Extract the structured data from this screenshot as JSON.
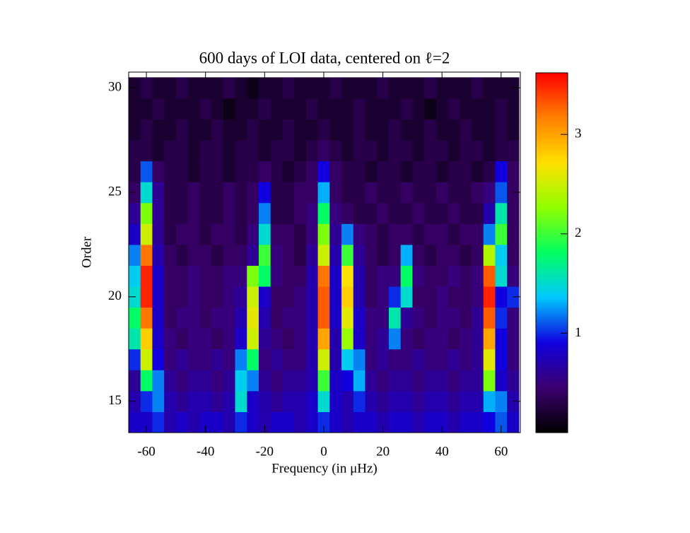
{
  "chart_data": {
    "type": "heatmap",
    "title": "600 days of LOI data, centered on ℓ=2",
    "x_label": "Frequency (in μHz)",
    "y_label": "Order",
    "x": [
      -64,
      -60,
      -56,
      -52,
      -48,
      -44,
      -40,
      -36,
      -32,
      -28,
      -24,
      -20,
      -16,
      -12,
      -8,
      -4,
      0,
      4,
      8,
      12,
      16,
      20,
      24,
      28,
      32,
      36,
      40,
      44,
      48,
      52,
      56,
      60,
      64
    ],
    "y": [
      14,
      15,
      16,
      17,
      18,
      19,
      20,
      21,
      22,
      23,
      24,
      25,
      26,
      27,
      28,
      29,
      30
    ],
    "z": [
      [
        0.8,
        0.8,
        1.0,
        0.7,
        0.8,
        0.7,
        0.8,
        0.8,
        0.7,
        1.0,
        0.8,
        0.7,
        0.8,
        0.8,
        0.7,
        0.8,
        1.0,
        0.8,
        0.7,
        0.8,
        0.8,
        0.7,
        0.8,
        0.8,
        0.7,
        0.8,
        0.8,
        0.7,
        0.8,
        0.8,
        0.9,
        1.1,
        0.8
      ],
      [
        0.7,
        1.0,
        1.2,
        0.7,
        0.6,
        0.7,
        0.7,
        0.6,
        0.7,
        1.5,
        0.8,
        0.7,
        0.6,
        0.7,
        0.7,
        0.8,
        1.5,
        0.8,
        0.7,
        1.0,
        0.7,
        0.6,
        0.7,
        0.7,
        0.6,
        0.7,
        0.7,
        0.6,
        0.7,
        0.7,
        1.3,
        1.2,
        0.7
      ],
      [
        0.6,
        1.8,
        1.2,
        0.6,
        0.5,
        0.6,
        0.6,
        0.5,
        0.6,
        1.4,
        1.2,
        0.6,
        0.5,
        0.6,
        0.6,
        0.7,
        2.0,
        0.8,
        0.9,
        1.3,
        0.6,
        0.5,
        0.6,
        0.6,
        0.5,
        0.6,
        0.6,
        0.5,
        0.6,
        0.6,
        2.2,
        0.8,
        0.6
      ],
      [
        1.0,
        2.5,
        0.9,
        0.5,
        0.6,
        0.5,
        0.5,
        0.6,
        0.5,
        1.2,
        1.8,
        0.5,
        0.6,
        0.5,
        0.5,
        0.7,
        2.5,
        0.7,
        1.4,
        1.2,
        0.5,
        0.6,
        0.5,
        0.5,
        0.6,
        0.5,
        0.5,
        0.6,
        0.5,
        0.6,
        2.6,
        0.9,
        0.5
      ],
      [
        1.6,
        2.8,
        0.8,
        0.5,
        0.4,
        0.5,
        0.5,
        0.4,
        0.5,
        0.8,
        2.5,
        0.6,
        0.5,
        0.4,
        0.5,
        0.7,
        3.0,
        0.7,
        2.3,
        0.8,
        0.5,
        0.6,
        1.2,
        0.5,
        0.4,
        0.5,
        0.5,
        0.4,
        0.5,
        0.6,
        3.0,
        0.9,
        0.5
      ],
      [
        1.8,
        3.2,
        0.8,
        0.4,
        0.5,
        0.5,
        0.4,
        0.5,
        0.5,
        0.7,
        2.6,
        0.7,
        0.4,
        0.5,
        0.5,
        0.7,
        3.3,
        0.8,
        2.6,
        0.8,
        0.5,
        0.5,
        1.6,
        0.6,
        0.5,
        0.4,
        0.5,
        0.5,
        0.4,
        0.6,
        3.3,
        1.0,
        0.5
      ],
      [
        1.5,
        3.5,
        0.8,
        0.4,
        0.4,
        0.5,
        0.4,
        0.4,
        0.5,
        0.6,
        2.5,
        0.8,
        0.4,
        0.4,
        0.5,
        0.7,
        3.3,
        0.8,
        2.8,
        0.7,
        0.4,
        0.5,
        1.0,
        1.5,
        0.4,
        0.4,
        0.5,
        0.4,
        0.4,
        0.5,
        3.5,
        0.9,
        1.0
      ],
      [
        1.4,
        3.5,
        0.8,
        0.4,
        0.4,
        0.5,
        0.4,
        0.4,
        0.5,
        0.5,
        2.2,
        1.8,
        0.5,
        0.4,
        0.4,
        0.7,
        3.2,
        0.8,
        2.7,
        0.7,
        0.4,
        0.5,
        0.5,
        1.8,
        0.5,
        0.4,
        0.4,
        0.5,
        0.4,
        0.5,
        3.3,
        1.5,
        0.5
      ],
      [
        1.2,
        3.2,
        0.7,
        0.4,
        0.3,
        0.4,
        0.4,
        0.3,
        0.4,
        0.4,
        0.6,
        2.0,
        0.5,
        0.4,
        0.3,
        0.6,
        2.5,
        0.7,
        2.0,
        0.6,
        0.4,
        0.3,
        0.4,
        1.3,
        0.4,
        0.3,
        0.4,
        0.4,
        0.3,
        0.4,
        2.4,
        1.4,
        0.4
      ],
      [
        0.8,
        2.5,
        0.6,
        0.3,
        0.4,
        0.4,
        0.3,
        0.4,
        0.4,
        0.3,
        0.5,
        1.5,
        0.4,
        0.4,
        0.3,
        0.5,
        2.2,
        0.6,
        1.2,
        0.5,
        0.4,
        0.3,
        0.4,
        0.4,
        0.3,
        0.4,
        0.4,
        0.3,
        0.4,
        0.4,
        1.2,
        2.0,
        0.4
      ],
      [
        0.6,
        2.2,
        0.6,
        0.3,
        0.3,
        0.4,
        0.3,
        0.3,
        0.4,
        0.3,
        0.4,
        1.2,
        0.3,
        0.3,
        0.4,
        0.5,
        1.8,
        0.5,
        0.4,
        0.3,
        0.3,
        0.4,
        0.3,
        0.3,
        0.4,
        0.3,
        0.3,
        0.4,
        0.3,
        0.3,
        0.7,
        1.6,
        0.4
      ],
      [
        0.4,
        1.5,
        0.6,
        0.3,
        0.3,
        0.4,
        0.3,
        0.3,
        0.4,
        0.3,
        0.4,
        0.9,
        0.3,
        0.3,
        0.4,
        0.4,
        1.3,
        0.4,
        0.3,
        0.3,
        0.4,
        0.3,
        0.3,
        0.4,
        0.3,
        0.3,
        0.4,
        0.3,
        0.3,
        0.4,
        0.5,
        1.1,
        0.4
      ],
      [
        0.3,
        1.1,
        0.4,
        0.3,
        0.3,
        0.2,
        0.3,
        0.3,
        0.2,
        0.3,
        0.3,
        0.4,
        0.3,
        0.2,
        0.3,
        0.4,
        0.9,
        0.4,
        0.3,
        0.3,
        0.2,
        0.3,
        0.3,
        0.2,
        0.3,
        0.3,
        0.2,
        0.3,
        0.3,
        0.2,
        0.3,
        0.9,
        0.4
      ],
      [
        0.3,
        0.3,
        0.2,
        0.3,
        0.3,
        0.2,
        0.3,
        0.3,
        0.2,
        0.3,
        0.3,
        0.2,
        0.3,
        0.3,
        0.2,
        0.3,
        0.4,
        0.3,
        0.2,
        0.3,
        0.3,
        0.2,
        0.3,
        0.3,
        0.2,
        0.3,
        0.3,
        0.2,
        0.3,
        0.3,
        0.2,
        0.3,
        0.3
      ],
      [
        0.2,
        0.3,
        0.2,
        0.2,
        0.3,
        0.2,
        0.2,
        0.3,
        0.2,
        0.2,
        0.3,
        0.2,
        0.2,
        0.3,
        0.2,
        0.2,
        0.3,
        0.2,
        0.2,
        0.3,
        0.2,
        0.2,
        0.3,
        0.2,
        0.2,
        0.3,
        0.2,
        0.2,
        0.3,
        0.2,
        0.2,
        0.3,
        0.2
      ],
      [
        0.2,
        0.2,
        0.3,
        0.2,
        0.2,
        0.2,
        0.3,
        0.2,
        0.1,
        0.2,
        0.2,
        0.3,
        0.2,
        0.2,
        0.2,
        0.3,
        0.2,
        0.2,
        0.2,
        0.3,
        0.2,
        0.2,
        0.2,
        0.3,
        0.2,
        0.1,
        0.2,
        0.3,
        0.2,
        0.2,
        0.2,
        0.3,
        0.2
      ],
      [
        0.2,
        0.3,
        0.2,
        0.2,
        0.3,
        0.2,
        0.2,
        0.2,
        0.3,
        0.2,
        0.1,
        0.2,
        0.2,
        0.3,
        0.2,
        0.2,
        0.2,
        0.3,
        0.2,
        0.2,
        0.2,
        0.3,
        0.2,
        0.2,
        0.2,
        0.3,
        0.2,
        0.2,
        0.2,
        0.3,
        0.2,
        0.2,
        0.2
      ]
    ],
    "xlim": [
      -66,
      66.5
    ],
    "ylim": [
      13.5,
      30.75
    ],
    "xticks": [
      -60,
      -40,
      -20,
      0,
      20,
      40,
      60
    ],
    "yticks": [
      15,
      20,
      25,
      30
    ],
    "zlim": [
      0,
      3.62
    ],
    "zticks": [
      1,
      2,
      3
    ],
    "colorscale": [
      "#000000",
      "#3c0070",
      "#1000e0",
      "#00c8ff",
      "#00ff60",
      "#90ff00",
      "#ffe000",
      "#ff8000",
      "#ff0000"
    ]
  }
}
